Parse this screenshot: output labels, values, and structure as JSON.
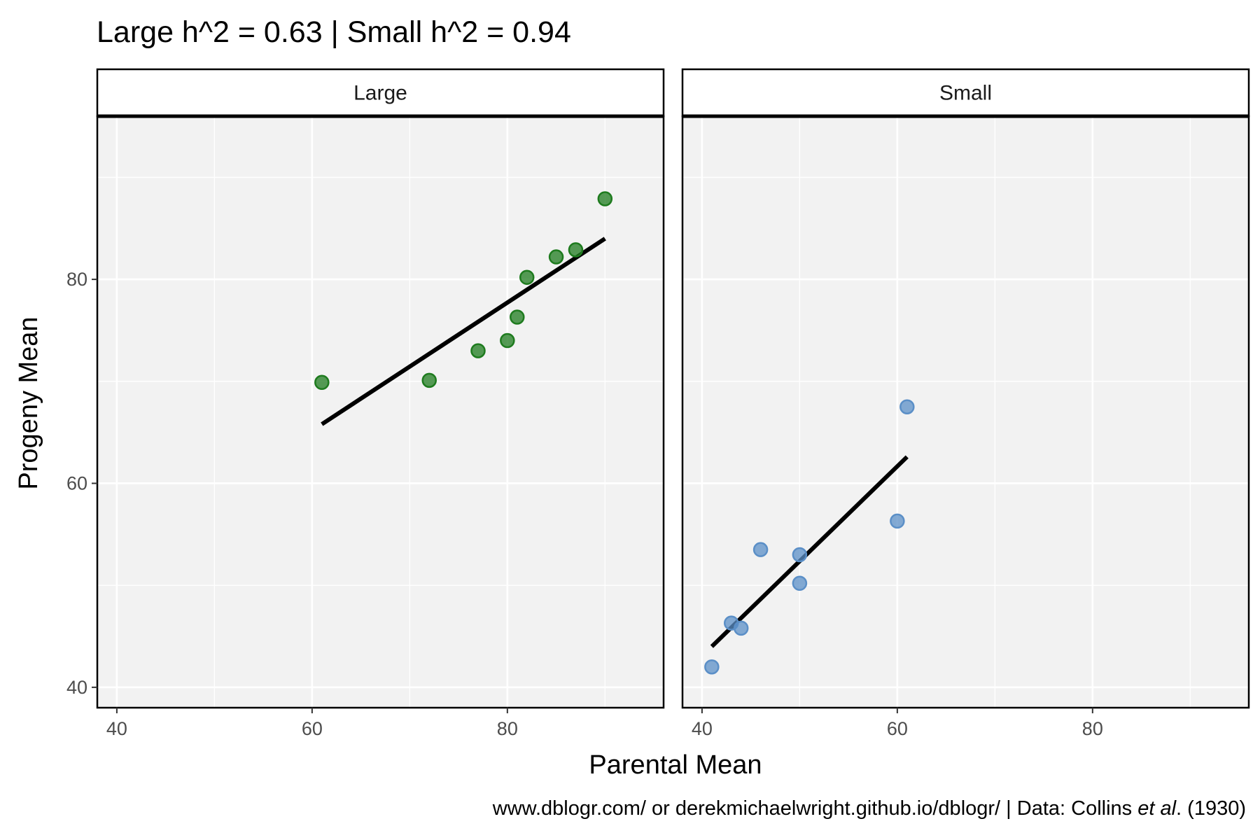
{
  "title": "Large h^2 = 0.63 | Small h^2 = 0.94",
  "caption": {
    "prefix": "www.dblogr.com/ or derekmichaelwright.github.io/dblogr/ | Data: Collins ",
    "italic": "et al",
    "suffix": ". (1930)"
  },
  "chart_data": {
    "type": "scatter",
    "xlabel": "Parental Mean",
    "ylabel": "Progeny Mean",
    "xlim": [
      38,
      96
    ],
    "ylim": [
      38,
      96
    ],
    "x_ticks": [
      40,
      60,
      80
    ],
    "y_ticks": [
      40,
      60,
      80
    ],
    "grid": true,
    "panels": [
      {
        "label": "Large",
        "color": "#1e7b1e",
        "points": [
          {
            "x": 61,
            "y": 69.9
          },
          {
            "x": 72,
            "y": 70.1
          },
          {
            "x": 77,
            "y": 73.0
          },
          {
            "x": 80,
            "y": 74.0
          },
          {
            "x": 81,
            "y": 76.3
          },
          {
            "x": 82,
            "y": 80.2
          },
          {
            "x": 85,
            "y": 82.2
          },
          {
            "x": 87,
            "y": 82.9
          },
          {
            "x": 90,
            "y": 87.9
          }
        ],
        "fit_line": {
          "x": [
            61,
            90
          ],
          "y": [
            65.8,
            84.0
          ]
        }
      },
      {
        "label": "Small",
        "color": "#5b8fc7",
        "points": [
          {
            "x": 41,
            "y": 42.0
          },
          {
            "x": 43,
            "y": 46.3
          },
          {
            "x": 44,
            "y": 45.8
          },
          {
            "x": 46,
            "y": 53.5
          },
          {
            "x": 50,
            "y": 53.0
          },
          {
            "x": 50,
            "y": 50.2
          },
          {
            "x": 60,
            "y": 56.3
          },
          {
            "x": 61,
            "y": 67.5
          }
        ],
        "fit_line": {
          "x": [
            41,
            61
          ],
          "y": [
            44.0,
            62.6
          ]
        }
      }
    ]
  }
}
